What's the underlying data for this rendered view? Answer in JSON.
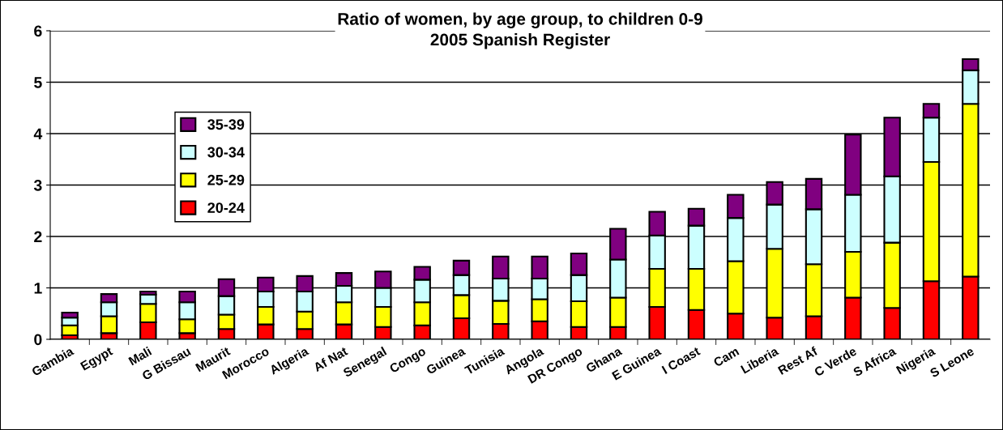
{
  "chart_data": {
    "type": "bar",
    "stacked": true,
    "title": "Ratio of women, by age group, to children 0-9",
    "subtitle": "2005 Spanish Register",
    "categories": [
      "Gambia",
      "Egypt",
      "Mali",
      "G Bissau",
      "Maurit",
      "Morocco",
      "Algeria",
      "Af Nat",
      "Senegal",
      "Congo",
      "Guinea",
      "Tunisia",
      "Angola",
      "DR Congo",
      "Ghana",
      "E Guinea",
      "I Coast",
      "Cam",
      "Liberia",
      "Rest Af",
      "C Verde",
      "S Africa",
      "Nigeria",
      "S Leone"
    ],
    "series": [
      {
        "name": "20-24",
        "color": "#ff0000",
        "values": [
          0.08,
          0.12,
          0.33,
          0.12,
          0.2,
          0.29,
          0.2,
          0.29,
          0.24,
          0.27,
          0.41,
          0.3,
          0.35,
          0.24,
          0.24,
          0.63,
          0.57,
          0.5,
          0.42,
          0.45,
          0.81,
          0.61,
          1.13,
          1.22
        ]
      },
      {
        "name": "25-29",
        "color": "#ffff00",
        "values": [
          0.19,
          0.33,
          0.36,
          0.27,
          0.28,
          0.34,
          0.34,
          0.43,
          0.39,
          0.45,
          0.45,
          0.45,
          0.43,
          0.5,
          0.57,
          0.74,
          0.8,
          1.02,
          1.34,
          1.01,
          0.89,
          1.27,
          2.32,
          3.36
        ]
      },
      {
        "name": "30-34",
        "color": "#ccffff",
        "values": [
          0.15,
          0.27,
          0.18,
          0.33,
          0.36,
          0.3,
          0.39,
          0.32,
          0.37,
          0.44,
          0.39,
          0.43,
          0.4,
          0.51,
          0.74,
          0.65,
          0.84,
          0.84,
          0.86,
          1.07,
          1.11,
          1.29,
          0.86,
          0.65
        ]
      },
      {
        "name": "35-39",
        "color": "#800080",
        "values": [
          0.1,
          0.16,
          0.06,
          0.21,
          0.33,
          0.27,
          0.3,
          0.25,
          0.32,
          0.25,
          0.28,
          0.43,
          0.43,
          0.42,
          0.6,
          0.46,
          0.33,
          0.45,
          0.44,
          0.59,
          1.17,
          1.14,
          0.27,
          0.22
        ]
      }
    ],
    "ylim": [
      0,
      6
    ],
    "yticks": [
      0,
      1,
      2,
      3,
      4,
      5,
      6
    ],
    "grid": "y",
    "legend": "left"
  }
}
